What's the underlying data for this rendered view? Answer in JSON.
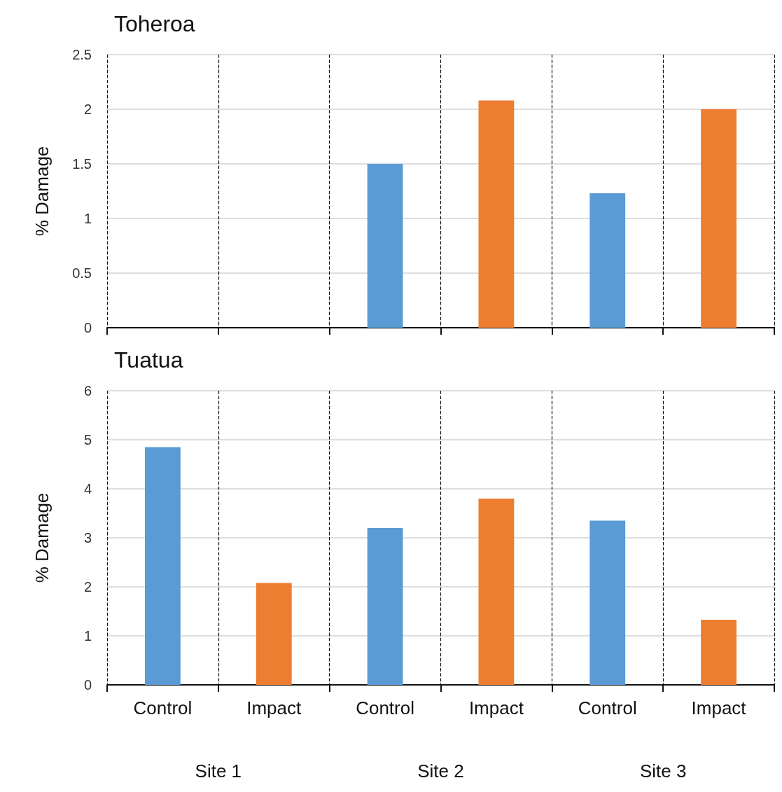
{
  "chart_data": [
    {
      "type": "bar",
      "title": "Toheroa",
      "ylabel": "% Damage",
      "categories": [
        null,
        null,
        null,
        null,
        null,
        null
      ],
      "values": [
        0,
        0,
        1.5,
        2.08,
        1.23,
        2.0
      ],
      "colors": [
        "#5b9bd5",
        "#ed7d31",
        "#5b9bd5",
        "#ed7d31",
        "#5b9bd5",
        "#ed7d31"
      ],
      "ylim": [
        0,
        2.5
      ],
      "yticks": [
        0,
        0.5,
        1,
        1.5,
        2,
        2.5
      ],
      "grid": true,
      "tick_labels": "y"
    },
    {
      "type": "bar",
      "title": "Tuatua",
      "ylabel": "% Damage",
      "categories": [
        "Control",
        "Impact",
        "Control",
        "Impact",
        "Control",
        "Impact"
      ],
      "values": [
        4.85,
        2.08,
        3.2,
        3.8,
        3.35,
        1.33
      ],
      "colors": [
        "#5b9bd5",
        "#ed7d31",
        "#5b9bd5",
        "#ed7d31",
        "#5b9bd5",
        "#ed7d31"
      ],
      "ylim": [
        0,
        6
      ],
      "yticks": [
        0,
        1,
        2,
        3,
        4,
        5,
        6
      ],
      "grid": true,
      "annotations": [
        "Site 1",
        "Site 2",
        "Site 3"
      ]
    }
  ]
}
